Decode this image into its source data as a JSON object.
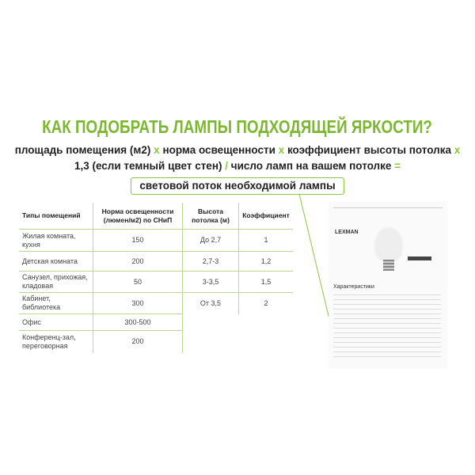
{
  "title": "КАК ПОДОБРАТЬ ЛАМПЫ ПОДХОДЯЩЕЙ ЯРКОСТИ?",
  "formula": {
    "part1": "площадь помещения (м2)",
    "op1": "x",
    "part2": "норма освещенности",
    "op2": "x",
    "part3": "коэффициент высоты потолка",
    "op3": "x",
    "part4": "1,3 (если темный цвет стен)",
    "op4": "/",
    "part5": "число ламп на вашем потолке",
    "op5": "=",
    "result": "световой поток необходимой лампы"
  },
  "table": {
    "headers": [
      "Типы помещений",
      "Норма освещенности (люмен/м2) по СНиП",
      "Высота потолка (м)",
      "Коэффициент"
    ],
    "rows": [
      [
        "Жилая комната, кухня",
        "150",
        "До 2,7",
        "1"
      ],
      [
        "Детская комната",
        "200",
        "2,7-3",
        "1,2"
      ],
      [
        "Санузел, прихожая, кладовая",
        "50",
        "3-3,5",
        "1,5"
      ],
      [
        "Кабинет, библиотека",
        "300",
        "От 3,5",
        "2"
      ],
      [
        "Офис",
        "300-500",
        "",
        ""
      ],
      [
        "Конференц-зал, переговорная",
        "200",
        "",
        ""
      ]
    ]
  },
  "screenshot": {
    "brand": "LEXMAN",
    "section": "Характеристики"
  },
  "colors": {
    "accent": "#7cb82f"
  }
}
